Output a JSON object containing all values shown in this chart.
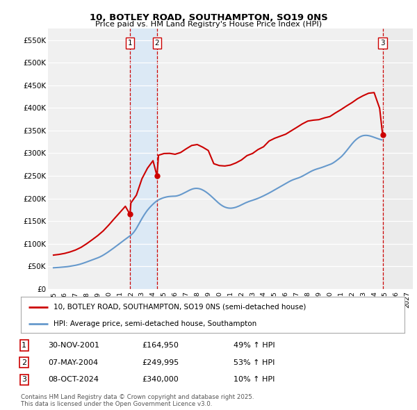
{
  "title": "10, BOTLEY ROAD, SOUTHAMPTON, SO19 0NS",
  "subtitle": "Price paid vs. HM Land Registry's House Price Index (HPI)",
  "property_label": "10, BOTLEY ROAD, SOUTHAMPTON, SO19 0NS (semi-detached house)",
  "hpi_label": "HPI: Average price, semi-detached house, Southampton",
  "property_color": "#cc0000",
  "hpi_color": "#6699cc",
  "sale_color": "#cc0000",
  "vline_color": "#cc0000",
  "highlight_fill": "#dce9f5",
  "transactions": [
    {
      "num": 1,
      "date": "30-NOV-2001",
      "price": 164950,
      "pct": "49%",
      "dir": "↑",
      "year_x": 2001.92
    },
    {
      "num": 2,
      "date": "07-MAY-2004",
      "price": 249995,
      "pct": "53%",
      "dir": "↑",
      "year_x": 2004.36
    },
    {
      "num": 3,
      "date": "08-OCT-2024",
      "price": 340000,
      "pct": "10%",
      "dir": "↑",
      "year_x": 2024.77
    }
  ],
  "footnote": "Contains HM Land Registry data © Crown copyright and database right 2025.\nThis data is licensed under the Open Government Licence v3.0.",
  "ylim": [
    0,
    575000
  ],
  "xlim_start": 1994.5,
  "xlim_end": 2027.5,
  "yticks": [
    0,
    50000,
    100000,
    150000,
    200000,
    250000,
    300000,
    350000,
    400000,
    450000,
    500000,
    550000
  ],
  "ytick_labels": [
    "£0",
    "£50K",
    "£100K",
    "£150K",
    "£200K",
    "£250K",
    "£300K",
    "£350K",
    "£400K",
    "£450K",
    "£500K",
    "£550K"
  ],
  "xticks": [
    1995,
    1996,
    1997,
    1998,
    1999,
    2000,
    2001,
    2002,
    2003,
    2004,
    2005,
    2006,
    2007,
    2008,
    2009,
    2010,
    2011,
    2012,
    2013,
    2014,
    2015,
    2016,
    2017,
    2018,
    2019,
    2020,
    2021,
    2022,
    2023,
    2024,
    2025,
    2026,
    2027
  ],
  "hpi_x": [
    1995.0,
    1995.1,
    1995.2,
    1995.3,
    1995.4,
    1995.5,
    1995.6,
    1995.7,
    1995.8,
    1995.9,
    1996.0,
    1996.1,
    1996.2,
    1996.3,
    1996.4,
    1996.5,
    1996.6,
    1996.7,
    1996.8,
    1996.9,
    1997.0,
    1997.1,
    1997.2,
    1997.3,
    1997.4,
    1997.5,
    1997.6,
    1997.7,
    1997.8,
    1997.9,
    1998.0,
    1998.1,
    1998.2,
    1998.3,
    1998.4,
    1998.5,
    1998.6,
    1998.7,
    1998.8,
    1998.9,
    1999.0,
    1999.1,
    1999.2,
    1999.3,
    1999.4,
    1999.5,
    1999.6,
    1999.7,
    1999.8,
    1999.9,
    2000.0,
    2000.1,
    2000.2,
    2000.3,
    2000.4,
    2000.5,
    2000.6,
    2000.7,
    2000.8,
    2000.9,
    2001.0,
    2001.1,
    2001.2,
    2001.3,
    2001.4,
    2001.5,
    2001.6,
    2001.7,
    2001.8,
    2001.9,
    2002.0,
    2002.1,
    2002.2,
    2002.3,
    2002.4,
    2002.5,
    2002.6,
    2002.7,
    2002.8,
    2002.9,
    2003.0,
    2003.1,
    2003.2,
    2003.3,
    2003.4,
    2003.5,
    2003.6,
    2003.7,
    2003.8,
    2003.9,
    2004.0,
    2004.1,
    2004.2,
    2004.3,
    2004.4,
    2004.5,
    2004.6,
    2004.7,
    2004.8,
    2004.9,
    2005.0,
    2005.1,
    2005.2,
    2005.3,
    2005.4,
    2005.5,
    2005.6,
    2005.7,
    2005.8,
    2005.9,
    2006.0,
    2006.1,
    2006.2,
    2006.3,
    2006.4,
    2006.5,
    2006.6,
    2006.7,
    2006.8,
    2006.9,
    2007.0,
    2007.1,
    2007.2,
    2007.3,
    2007.4,
    2007.5,
    2007.6,
    2007.7,
    2007.8,
    2007.9,
    2008.0,
    2008.1,
    2008.2,
    2008.3,
    2008.4,
    2008.5,
    2008.6,
    2008.7,
    2008.8,
    2008.9,
    2009.0,
    2009.1,
    2009.2,
    2009.3,
    2009.4,
    2009.5,
    2009.6,
    2009.7,
    2009.8,
    2009.9,
    2010.0,
    2010.1,
    2010.2,
    2010.3,
    2010.4,
    2010.5,
    2010.6,
    2010.7,
    2010.8,
    2010.9,
    2011.0,
    2011.1,
    2011.2,
    2011.3,
    2011.4,
    2011.5,
    2011.6,
    2011.7,
    2011.8,
    2011.9,
    2012.0,
    2012.1,
    2012.2,
    2012.3,
    2012.4,
    2012.5,
    2012.6,
    2012.7,
    2012.8,
    2012.9,
    2013.0,
    2013.1,
    2013.2,
    2013.3,
    2013.4,
    2013.5,
    2013.6,
    2013.7,
    2013.8,
    2013.9,
    2014.0,
    2014.1,
    2014.2,
    2014.3,
    2014.4,
    2014.5,
    2014.6,
    2014.7,
    2014.8,
    2014.9,
    2015.0,
    2015.1,
    2015.2,
    2015.3,
    2015.4,
    2015.5,
    2015.6,
    2015.7,
    2015.8,
    2015.9,
    2016.0,
    2016.1,
    2016.2,
    2016.3,
    2016.4,
    2016.5,
    2016.6,
    2016.7,
    2016.8,
    2016.9,
    2017.0,
    2017.1,
    2017.2,
    2017.3,
    2017.4,
    2017.5,
    2017.6,
    2017.7,
    2017.8,
    2017.9,
    2018.0,
    2018.1,
    2018.2,
    2018.3,
    2018.4,
    2018.5,
    2018.6,
    2018.7,
    2018.8,
    2018.9,
    2019.0,
    2019.1,
    2019.2,
    2019.3,
    2019.4,
    2019.5,
    2019.6,
    2019.7,
    2019.8,
    2019.9,
    2020.0,
    2020.1,
    2020.2,
    2020.3,
    2020.4,
    2020.5,
    2020.6,
    2020.7,
    2020.8,
    2020.9,
    2021.0,
    2021.1,
    2021.2,
    2021.3,
    2021.4,
    2021.5,
    2021.6,
    2021.7,
    2021.8,
    2021.9,
    2022.0,
    2022.1,
    2022.2,
    2022.3,
    2022.4,
    2022.5,
    2022.6,
    2022.7,
    2022.8,
    2022.9,
    2023.0,
    2023.1,
    2023.2,
    2023.3,
    2023.4,
    2023.5,
    2023.6,
    2023.7,
    2023.8,
    2023.9,
    2024.0,
    2024.1,
    2024.2,
    2024.3,
    2024.4,
    2024.5,
    2024.6,
    2024.7
  ],
  "hpi_y": [
    47000,
    47200,
    47400,
    47500,
    47600,
    47800,
    48000,
    48100,
    48300,
    48500,
    48700,
    49000,
    49300,
    49600,
    50000,
    50400,
    50800,
    51200,
    51600,
    52000,
    52500,
    53000,
    53600,
    54200,
    54900,
    55600,
    56400,
    57200,
    58000,
    58900,
    59800,
    60700,
    61600,
    62500,
    63400,
    64300,
    65200,
    66100,
    67000,
    67900,
    68900,
    69900,
    71000,
    72200,
    73500,
    74900,
    76400,
    77900,
    79500,
    81100,
    82800,
    84500,
    86200,
    88000,
    89800,
    91600,
    93400,
    95200,
    97000,
    98900,
    100800,
    102700,
    104600,
    106400,
    108200,
    110000,
    111800,
    113600,
    115400,
    117100,
    119000,
    121200,
    123800,
    126800,
    130200,
    134000,
    138200,
    142600,
    147000,
    151400,
    155700,
    159800,
    163700,
    167400,
    170900,
    174200,
    177200,
    180000,
    182600,
    185100,
    187500,
    189800,
    191900,
    193800,
    195500,
    196900,
    198200,
    199300,
    200300,
    201200,
    202000,
    202700,
    203300,
    203800,
    204200,
    204500,
    204700,
    204900,
    205000,
    205100,
    205200,
    205500,
    206000,
    206700,
    207500,
    208500,
    209600,
    210800,
    212000,
    213200,
    214500,
    215800,
    217100,
    218300,
    219400,
    220400,
    221200,
    221800,
    222200,
    222400,
    222300,
    222000,
    221500,
    220800,
    219900,
    218700,
    217400,
    215900,
    214300,
    212500,
    210600,
    208600,
    206500,
    204300,
    202100,
    199800,
    197500,
    195200,
    192900,
    190700,
    188600,
    186700,
    185000,
    183500,
    182200,
    181100,
    180200,
    179500,
    179000,
    178700,
    178600,
    178700,
    179000,
    179400,
    180000,
    180700,
    181600,
    182600,
    183600,
    184800,
    186000,
    187200,
    188400,
    189600,
    190700,
    191700,
    192700,
    193600,
    194400,
    195200,
    196000,
    196800,
    197600,
    198500,
    199400,
    200400,
    201400,
    202500,
    203600,
    204700,
    205900,
    207100,
    208300,
    209500,
    210800,
    212100,
    213400,
    214800,
    216200,
    217600,
    219000,
    220400,
    221800,
    223200,
    224600,
    226000,
    227400,
    228800,
    230200,
    231600,
    233000,
    234400,
    235800,
    237100,
    238400,
    239600,
    240700,
    241700,
    242600,
    243400,
    244200,
    245000,
    245900,
    246900,
    248000,
    249200,
    250500,
    251800,
    253200,
    254600,
    256000,
    257400,
    258700,
    260000,
    261200,
    262300,
    263300,
    264200,
    265000,
    265800,
    266500,
    267200,
    268000,
    268800,
    269700,
    270600,
    271500,
    272400,
    273300,
    274200,
    275100,
    276100,
    277300,
    278700,
    280300,
    282000,
    283800,
    285700,
    287600,
    289600,
    291700,
    294000,
    296600,
    299400,
    302300,
    305300,
    308400,
    311500,
    314600,
    317700,
    320700,
    323500,
    326200,
    328600,
    330800,
    332700,
    334400,
    335900,
    337100,
    338100,
    338800,
    339200,
    339400,
    339400,
    339200,
    338800,
    338300,
    337600,
    336800,
    336000,
    335100,
    334200,
    333300,
    332400,
    331600,
    330800,
    330100,
    329500
  ],
  "prop_x": [
    1995.0,
    1995.5,
    1996.0,
    1996.5,
    1997.0,
    1997.5,
    1998.0,
    1998.5,
    1999.0,
    1999.5,
    2000.0,
    2000.5,
    2001.0,
    2001.5,
    2001.92,
    2002.0,
    2002.5,
    2003.0,
    2003.5,
    2004.0,
    2004.36,
    2004.5,
    2005.0,
    2005.5,
    2006.0,
    2006.5,
    2007.0,
    2007.5,
    2008.0,
    2008.5,
    2009.0,
    2009.5,
    2010.0,
    2010.5,
    2011.0,
    2011.5,
    2012.0,
    2012.5,
    2013.0,
    2013.5,
    2014.0,
    2014.5,
    2015.0,
    2015.5,
    2016.0,
    2016.5,
    2017.0,
    2017.5,
    2018.0,
    2018.5,
    2019.0,
    2019.5,
    2020.0,
    2020.5,
    2021.0,
    2021.5,
    2022.0,
    2022.5,
    2023.0,
    2023.5,
    2024.0,
    2024.5,
    2024.77
  ],
  "prop_y": [
    75000,
    76500,
    78700,
    82000,
    86300,
    92200,
    100100,
    108900,
    118000,
    128500,
    141400,
    155400,
    169000,
    182800,
    164950,
    190200,
    207500,
    243600,
    266900,
    283500,
    249995,
    295600,
    299300,
    299700,
    297700,
    301600,
    309700,
    317100,
    319200,
    313300,
    306000,
    276800,
    272700,
    271800,
    273800,
    278600,
    285100,
    294700,
    299400,
    308100,
    314300,
    326900,
    333000,
    337500,
    342000,
    349500,
    357000,
    364700,
    371000,
    373000,
    374100,
    378000,
    381000,
    389000,
    396300,
    404300,
    411800,
    420400,
    427000,
    432500,
    433900,
    399000,
    340000
  ]
}
